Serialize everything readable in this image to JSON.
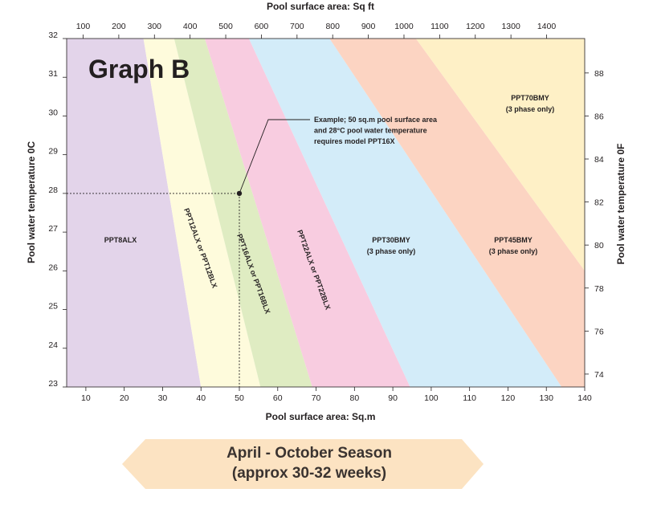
{
  "chart_data": {
    "type": "area",
    "title": "Graph B",
    "x_bottom": {
      "label": "Pool surface area: Sq.m",
      "range": [
        5,
        140
      ],
      "ticks": [
        10,
        20,
        30,
        40,
        50,
        60,
        70,
        80,
        90,
        100,
        110,
        120,
        130,
        140
      ]
    },
    "x_top": {
      "label": "Pool surface area: Sq ft",
      "ticks": [
        100,
        200,
        300,
        400,
        500,
        600,
        700,
        800,
        900,
        1000,
        1100,
        1200,
        1300,
        1400
      ]
    },
    "y_left": {
      "label": "Pool water temperature 0C",
      "range": [
        23,
        32
      ],
      "ticks": [
        23,
        24,
        25,
        26,
        27,
        28,
        29,
        30,
        31,
        32
      ]
    },
    "y_right": {
      "label": "Pool water temperature 0F",
      "ticks": [
        74,
        76,
        78,
        80,
        82,
        84,
        86,
        88
      ]
    },
    "zones": [
      {
        "name": "PPT8ALX",
        "color": "#e3d4ea",
        "boundary": {
          "at_23C": 40,
          "at_32C": 25
        }
      },
      {
        "name": "PPT12ALX or PPT12BLX",
        "color": "#fefbdc",
        "boundary": {
          "at_23C": 55.5,
          "at_32C": 33
        }
      },
      {
        "name": "PPT16ALX or PPT16BLX",
        "color": "#dfecc2",
        "boundary": {
          "at_23C": 69,
          "at_32C": 41
        }
      },
      {
        "name": "PPT22ALX or PPT22BLX",
        "color": "#f8cce0",
        "boundary": {
          "at_23C": 94.5,
          "at_32C": 52.5
        }
      },
      {
        "name": "PPT30BMY",
        "sub": "(3 phase only)",
        "color": "#d3ecf9",
        "boundary": {
          "at_23C": 134,
          "at_32C": 73.5
        }
      },
      {
        "name": "PPT45BMY",
        "sub": "(3 phase only)",
        "color": "#fcd4c2",
        "boundary": {
          "at_26C": 140,
          "at_32C": 96
        }
      },
      {
        "name": "PPT70BMY",
        "sub": "(3 phase only)",
        "color": "#fef0c6"
      }
    ],
    "example": {
      "x": 50,
      "y": 28,
      "text": [
        "Example; 50 sq.m pool surface area",
        "and 28°C pool water temperature",
        "requires model PPT16X"
      ]
    }
  },
  "season": {
    "line1": "April - October Season",
    "line2": "(approx 30-32 weeks)",
    "color": "#fce3c2"
  }
}
